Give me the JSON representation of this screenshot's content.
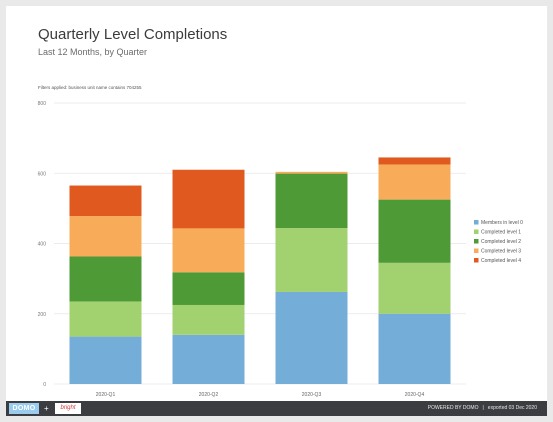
{
  "header": {
    "title": "Quarterly Level Completions",
    "subtitle": "Last 12 Months, by Quarter",
    "filters": "Filters applied: business unit name contains 704255"
  },
  "chart_data": {
    "type": "bar",
    "stacked": true,
    "categories": [
      "2020-Q1",
      "2020-Q2",
      "2020-Q3",
      "2020-Q4"
    ],
    "series": [
      {
        "name": "Members in level 0",
        "color": "#74aed8",
        "values": [
          135,
          140,
          262,
          200
        ]
      },
      {
        "name": "Completed level 1",
        "color": "#a2d270",
        "values": [
          100,
          85,
          182,
          145
        ]
      },
      {
        "name": "Completed level 2",
        "color": "#4e9a36",
        "values": [
          128,
          93,
          155,
          180
        ]
      },
      {
        "name": "Completed level 3",
        "color": "#f8ac5a",
        "values": [
          115,
          125,
          5,
          100
        ]
      },
      {
        "name": "Completed level 4",
        "color": "#e05a20",
        "values": [
          87,
          167,
          0,
          20
        ]
      }
    ],
    "yticks": [
      "0",
      "200",
      "400",
      "600",
      "800"
    ],
    "ylim": [
      0,
      800
    ],
    "grid": true,
    "legend": "right"
  },
  "footer": {
    "logo": "DOMO",
    "partner_logo": "bright",
    "powered_by": "POWERED BY DOMO",
    "separator": "|",
    "exported": "exported 03 Dec 2020"
  }
}
